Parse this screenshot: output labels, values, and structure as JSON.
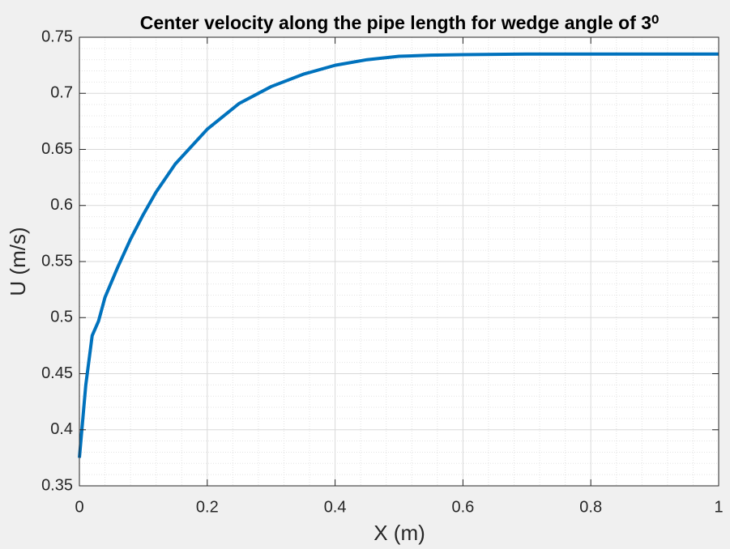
{
  "chart_data": {
    "type": "line",
    "title": "Center velocity along the pipe length for wedge angle of 3⁰",
    "x_label": "X (m)",
    "y_label": "U (m/s)",
    "x": [
      0,
      0.01,
      0.02,
      0.03,
      0.04,
      0.06,
      0.08,
      0.1,
      0.12,
      0.15,
      0.2,
      0.25,
      0.3,
      0.35,
      0.4,
      0.45,
      0.5,
      0.55,
      0.6,
      0.7,
      0.8,
      0.9,
      1.0
    ],
    "series": [
      {
        "name": "U",
        "color": "#0072bd",
        "values": [
          0.375,
          0.44,
          0.484,
          0.497,
          0.518,
          0.545,
          0.57,
          0.592,
          0.612,
          0.637,
          0.668,
          0.691,
          0.706,
          0.717,
          0.725,
          0.73,
          0.733,
          0.734,
          0.7345,
          0.735,
          0.735,
          0.735,
          0.735
        ]
      }
    ],
    "xlim": [
      0,
      1
    ],
    "xticks": [
      0,
      0.2,
      0.4,
      0.6,
      0.8,
      1
    ],
    "ylim": [
      0.35,
      0.75
    ],
    "yticks": [
      0.35,
      0.4,
      0.45,
      0.5,
      0.55,
      0.6,
      0.65,
      0.7,
      0.75
    ],
    "grid": true,
    "minor_grid": true
  }
}
